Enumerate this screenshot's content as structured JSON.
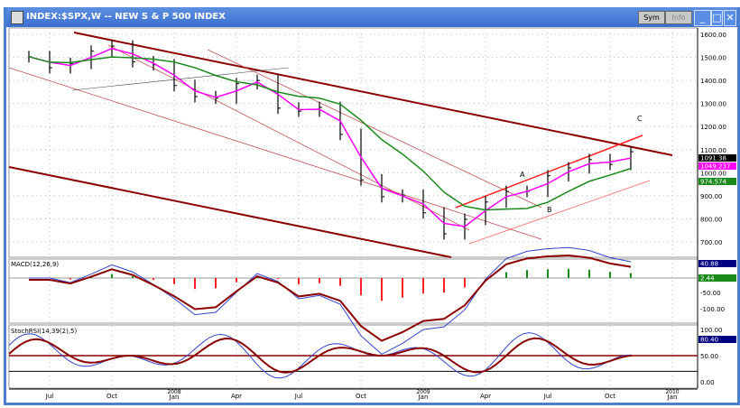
{
  "window": {
    "title": "INDEX:$SPX,W -- NEW S & P 500 INDEX",
    "btn_sym": "Sym",
    "btn_info": "Info",
    "minimize": "_",
    "maximize": "□",
    "close": "✕"
  },
  "colors": {
    "price": "#000000",
    "ma_fast": "#ff00ff",
    "ma_slow": "#1a8a1a",
    "trend": "#8b0000",
    "red": "#ff2020"
  },
  "chart_data": [
    {
      "type": "bar",
      "name_label": "",
      "categories": [
        "Jun07",
        "Jul07",
        "Aug07",
        "Sep07",
        "Oct07",
        "Nov07",
        "Dec07",
        "Jan08",
        "Feb08",
        "Mar08",
        "Apr08",
        "May08",
        "Jun08",
        "Jul08",
        "Aug08",
        "Sep08",
        "Oct08",
        "Nov08",
        "Dec08",
        "Jan09",
        "Feb09",
        "Mar09",
        "Apr09",
        "May09",
        "Jun09",
        "Jul09",
        "Aug09",
        "Sep09",
        "Oct09",
        "Nov09"
      ],
      "values": [
        1503,
        1455,
        1474,
        1527,
        1549,
        1481,
        1468,
        1378,
        1330,
        1323,
        1386,
        1400,
        1280,
        1267,
        1283,
        1166,
        969,
        896,
        903,
        826,
        735,
        798,
        873,
        919,
        919,
        987,
        1021,
        1057,
        1036,
        1091
      ],
      "ylim": [
        650,
        1650
      ],
      "yticks": [
        "1600.00",
        "1500.00",
        "1400.00",
        "1300.00",
        "1200.00",
        "1100.00",
        "1000.00",
        "900.00",
        "800.00",
        "700.00"
      ],
      "value_boxes": [
        {
          "text": "1091.38",
          "color": "#000000"
        },
        {
          "text": "1049.237",
          "color": "#ff00ff"
        },
        {
          "text": "974.574",
          "color": "#1a8a1a"
        }
      ],
      "annotations": [
        "A",
        "B",
        "C"
      ]
    },
    {
      "type": "line",
      "label": "MACD(12,26,9)",
      "yticks": [
        "-50.00",
        "-100.00"
      ],
      "value_boxes": [
        {
          "text": "40.88",
          "color": "#000080"
        },
        {
          "text": "2.44",
          "color": "#1a8a1a"
        }
      ]
    },
    {
      "type": "line",
      "label": "StochRSI(14,39(2),5)",
      "yticks": [
        "100.00",
        "50.00",
        "0.00"
      ],
      "value_boxes": [
        {
          "text": "80.40",
          "color": "#000080"
        }
      ]
    }
  ],
  "xaxis": {
    "ticks": [
      {
        "m": "Jul",
        "y": ""
      },
      {
        "m": "Oct",
        "y": ""
      },
      {
        "m": "Jan",
        "y": "2008"
      },
      {
        "m": "Apr",
        "y": ""
      },
      {
        "m": "Jul",
        "y": ""
      },
      {
        "m": "Oct",
        "y": ""
      },
      {
        "m": "Jan",
        "y": "2009"
      },
      {
        "m": "Apr",
        "y": ""
      },
      {
        "m": "Jul",
        "y": ""
      },
      {
        "m": "Oct",
        "y": ""
      },
      {
        "m": "Jan",
        "y": "2010"
      }
    ]
  }
}
